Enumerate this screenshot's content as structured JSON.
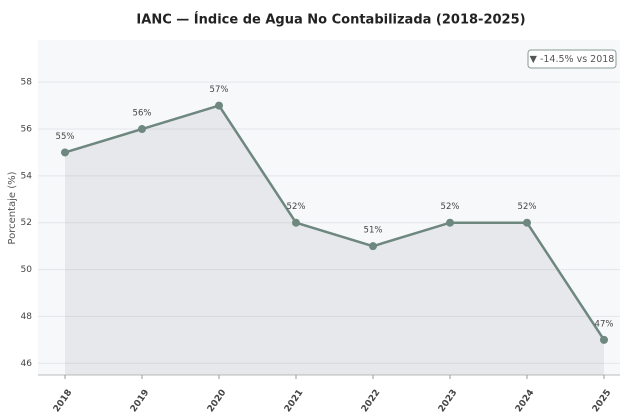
{
  "chart_data": {
    "type": "line",
    "title": "IANC — Índice de Agua No Contabilizada (2018-2025)",
    "ylabel": "Porcentaje (%)",
    "categories": [
      "2018",
      "2019",
      "2020",
      "2021",
      "2022",
      "2023",
      "2024",
      "2025"
    ],
    "values": [
      55,
      56,
      57,
      52,
      51,
      52,
      52,
      47
    ],
    "value_labels": [
      "55%",
      "56%",
      "57%",
      "52%",
      "51%",
      "52%",
      "52%",
      "47%"
    ],
    "color": "#6e877f",
    "ylim": [
      45.5,
      59.8
    ],
    "yticks": [
      46,
      48,
      50,
      52,
      54,
      56,
      58
    ],
    "grid": true,
    "annotation": "▼ -14.5% vs 2018"
  }
}
